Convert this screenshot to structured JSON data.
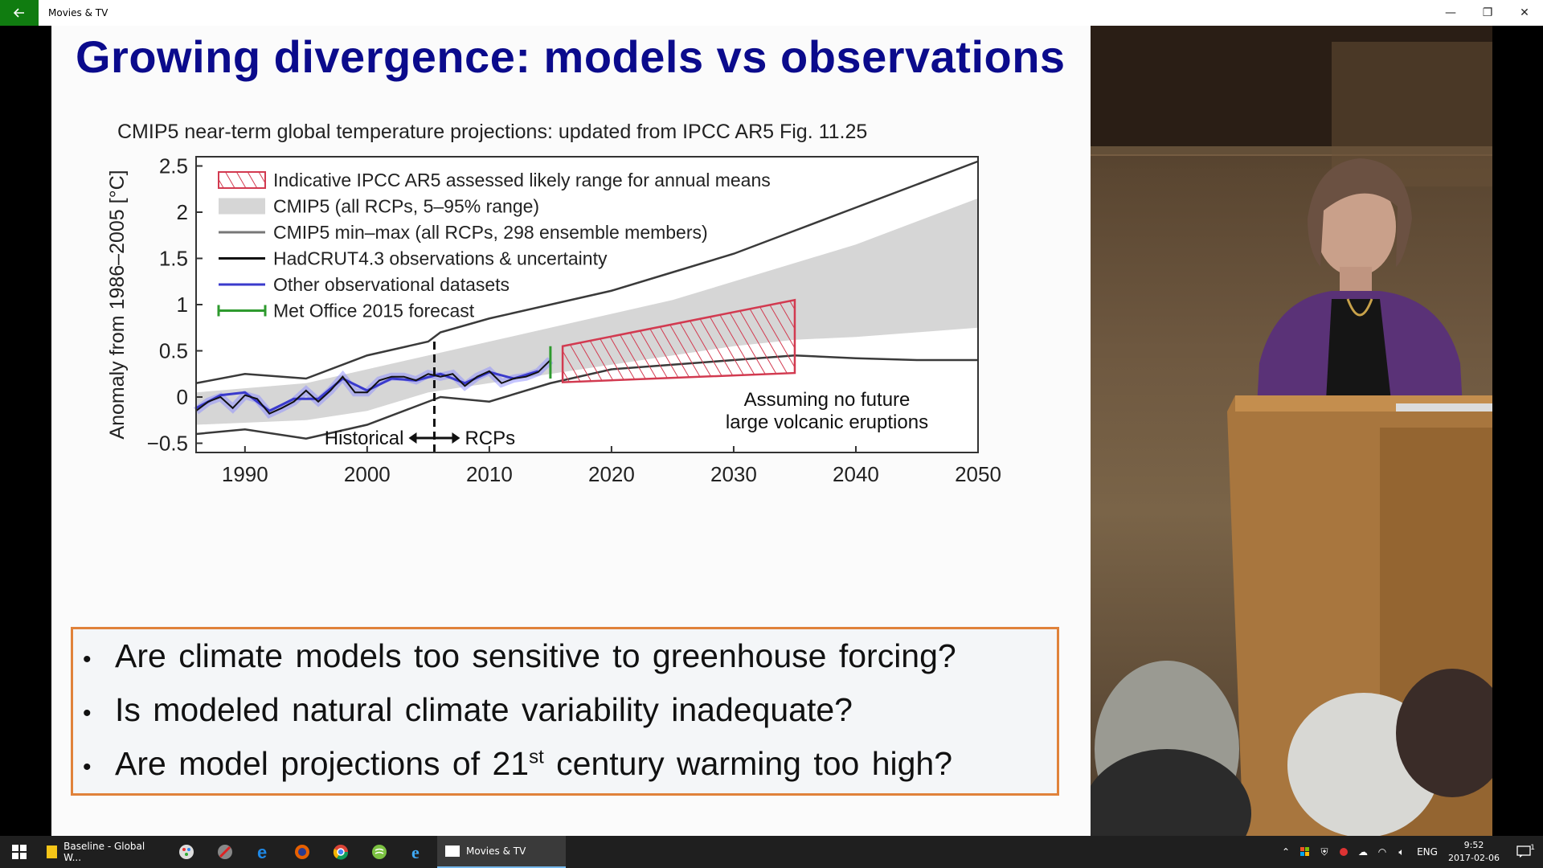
{
  "window": {
    "title": "Movies & TV",
    "back_icon": "back-arrow-icon",
    "controls": {
      "minimize": "—",
      "restore": "❐",
      "close": "✕"
    }
  },
  "slide": {
    "title": "Growing divergence: models vs observations",
    "questions": [
      {
        "text": "Are climate models too sensitive to greenhouse forcing?"
      },
      {
        "text": "Is modeled natural climate variability inadequate?"
      },
      {
        "text_before": "Are model projections of 21",
        "sup": "st",
        "text_after": " century warming too high?"
      }
    ]
  },
  "chart_data": {
    "type": "line",
    "title": "CMIP5 near-term global temperature projections: updated from IPCC AR5 Fig. 11.25",
    "ylabel": "Anomaly from 1986–2005 [°C]",
    "xlim": [
      1986,
      2050
    ],
    "ylim": [
      -0.6,
      2.6
    ],
    "x_ticks": [
      1990,
      2000,
      2010,
      2020,
      2030,
      2040,
      2050
    ],
    "y_ticks": [
      -0.5,
      0,
      0.5,
      1,
      1.5,
      2,
      2.5
    ],
    "y_tick_labels": [
      "−0.5",
      "0",
      "0.5",
      "1",
      "1.5",
      "2",
      "2.5"
    ],
    "legend": [
      "Indicative IPCC AR5 assessed likely range for annual means",
      "CMIP5 (all RCPs, 5–95% range)",
      "CMIP5 min–max (all RCPs, 298 ensemble members)",
      "HadCRUT4.3 observations & uncertainty",
      "Other observational datasets",
      "Met Office 2015 forecast"
    ],
    "legend_position": "top-left",
    "divider_year": 2005.5,
    "annotations": {
      "historical": "Historical",
      "rcps": "RCPs",
      "note_line1": "Assuming no future",
      "note_line2": "large volcanic eruptions"
    },
    "series": [
      {
        "name": "CMIP5 min–max (all RCPs, 298 ensemble members)",
        "upper_x": [
          1986,
          1990,
          1995,
          2000,
          2005,
          2006,
          2010,
          2015,
          2020,
          2025,
          2030,
          2035,
          2040,
          2045,
          2050
        ],
        "upper_y": [
          0.15,
          0.25,
          0.2,
          0.45,
          0.6,
          0.7,
          0.85,
          1.0,
          1.15,
          1.35,
          1.55,
          1.8,
          2.05,
          2.3,
          2.55
        ],
        "lower_x": [
          1986,
          1990,
          1995,
          2000,
          2005,
          2006,
          2010,
          2015,
          2020,
          2025,
          2030,
          2035,
          2040,
          2045,
          2050
        ],
        "lower_y": [
          -0.4,
          -0.35,
          -0.45,
          -0.3,
          -0.05,
          0.0,
          -0.05,
          0.15,
          0.3,
          0.35,
          0.4,
          0.45,
          0.42,
          0.4,
          0.4
        ]
      },
      {
        "name": "CMIP5 (all RCPs, 5–95% range)",
        "upper_x": [
          1986,
          1995,
          2000,
          2005,
          2010,
          2015,
          2020,
          2025,
          2030,
          2035,
          2040,
          2045,
          2050
        ],
        "upper_y": [
          0.05,
          0.15,
          0.3,
          0.45,
          0.6,
          0.75,
          0.9,
          1.05,
          1.25,
          1.45,
          1.65,
          1.9,
          2.15
        ],
        "lower_x": [
          1986,
          1995,
          2000,
          2005,
          2010,
          2015,
          2020,
          2025,
          2030,
          2035,
          2040,
          2045,
          2050
        ],
        "lower_y": [
          -0.3,
          -0.25,
          -0.15,
          0.05,
          0.15,
          0.25,
          0.35,
          0.45,
          0.55,
          0.62,
          0.65,
          0.7,
          0.75
        ]
      },
      {
        "name": "Indicative IPCC AR5 assessed likely range for annual means",
        "x": [
          2016,
          2035
        ],
        "lower_y": [
          0.16,
          0.26
        ],
        "upper_y": [
          0.55,
          1.05
        ]
      },
      {
        "name": "HadCRUT4.3 observations & uncertainty",
        "x": [
          1986,
          1987,
          1988,
          1989,
          1990,
          1991,
          1992,
          1993,
          1994,
          1995,
          1996,
          1997,
          1998,
          1999,
          2000,
          2001,
          2002,
          2003,
          2004,
          2005,
          2006,
          2007,
          2008,
          2009,
          2010,
          2011,
          2012,
          2013,
          2014,
          2015
        ],
        "y": [
          -0.15,
          -0.05,
          0.0,
          -0.12,
          0.02,
          -0.02,
          -0.18,
          -0.12,
          -0.05,
          0.07,
          -0.05,
          0.07,
          0.22,
          0.05,
          0.05,
          0.18,
          0.22,
          0.22,
          0.18,
          0.25,
          0.22,
          0.25,
          0.12,
          0.22,
          0.28,
          0.15,
          0.2,
          0.22,
          0.27,
          0.4
        ]
      },
      {
        "name": "Other observational datasets",
        "x": [
          1986,
          1988,
          1990,
          1992,
          1994,
          1996,
          1998,
          2000,
          2002,
          2004,
          2006,
          2008,
          2010,
          2012,
          2014
        ],
        "y": [
          -0.12,
          0.02,
          0.05,
          -0.15,
          -0.02,
          -0.02,
          0.2,
          0.07,
          0.2,
          0.18,
          0.25,
          0.15,
          0.27,
          0.2,
          0.28
        ]
      },
      {
        "name": "Met Office 2015 forecast",
        "x": [
          2015,
          2015
        ],
        "y": [
          0.2,
          0.55
        ]
      }
    ],
    "colors": {
      "likely_range": "#d23a50",
      "cmip5_range": "#d6d6d6",
      "minmax": "#3a3a3a",
      "hadcrut": "#111111",
      "other_obs": "#3a3acc",
      "metoffice": "#2e9a2e"
    }
  },
  "taskbar": {
    "start_icon": "windows-start-icon",
    "tasks": [
      {
        "label": "Baseline - Global W...",
        "icon": "sticky-notes-icon"
      },
      {
        "label": "Movies & TV",
        "icon": "movies-tv-icon",
        "active": true
      }
    ],
    "pinned_icons": [
      "paint-icon",
      "snipping-icon",
      "edge-icon",
      "firefox-icon",
      "chrome-icon",
      "green-app-icon",
      "internet-explorer-icon"
    ],
    "tray": {
      "language": "ENG",
      "time": "9:52",
      "date": "2017-02-06",
      "notification_count": "1"
    }
  }
}
